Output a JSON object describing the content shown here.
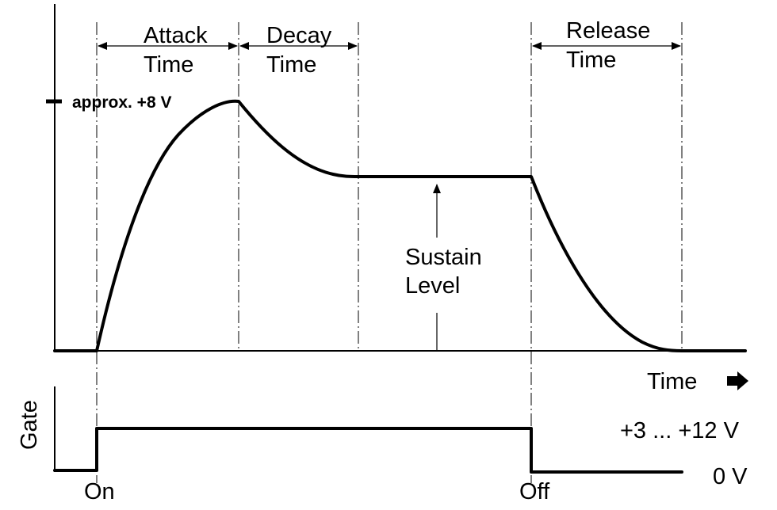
{
  "envelope": {
    "attack_label": [
      "Attack",
      "Time"
    ],
    "decay_label": [
      "Decay",
      "Time"
    ],
    "release_label": [
      "Release",
      "Time"
    ],
    "peak_label": "approx. +8 V",
    "sustain_label": [
      "Sustain",
      "Level"
    ],
    "time_label": "Time"
  },
  "gate": {
    "axis_label": "Gate",
    "high_label": "+3 ... +12 V",
    "low_label": "0 V",
    "on_label": "On",
    "off_label": "Off"
  }
}
